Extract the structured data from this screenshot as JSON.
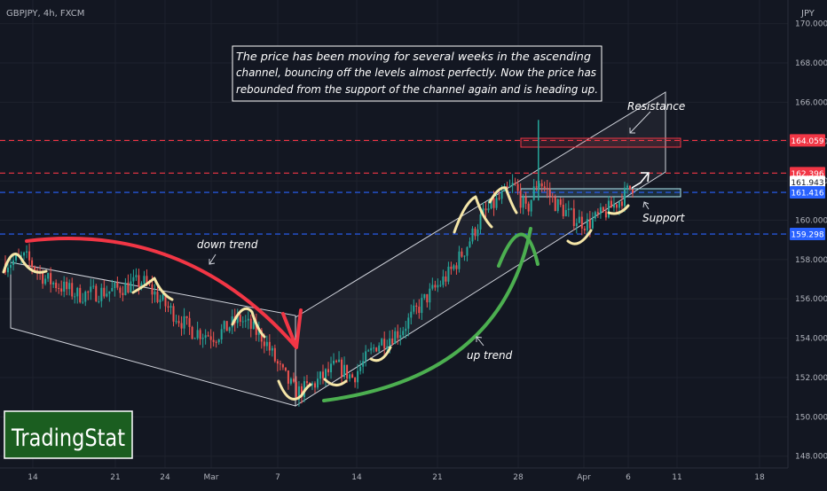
{
  "header": {
    "symbol_text": "GBPJPY, 4h, FXCM",
    "currency": "JPY"
  },
  "annotation_text": [
    "The price has been moving for several weeks in the ascending",
    "channel, bouncing off the levels almost perfectly. Now the price has",
    "rebounded from the support of the channel again and is heading up."
  ],
  "labels": {
    "down_trend": "down trend",
    "up_trend": "up trend",
    "resistance": "Resistance",
    "support": "Support"
  },
  "logo": "TradingStat",
  "colors": {
    "background": "#131722",
    "bull": "#26a69a",
    "bear": "#ef5350",
    "red_curve": "#f23645",
    "green_curve": "#4caf50",
    "yellow_curve": "#f5e6a8",
    "blue_level": "#2962ff"
  },
  "chart_data": {
    "type": "candlestick",
    "symbol": "GBPJPY",
    "timeframe": "4h",
    "source": "FXCM",
    "y_unit": "JPY",
    "y_ticks": [
      148,
      150,
      152,
      154,
      156,
      158,
      160,
      162,
      164,
      166,
      168,
      170
    ],
    "y_tick_labels": [
      "148.000",
      "150.000",
      "152.000",
      "154.000",
      "156.000",
      "158.000",
      "160.000",
      "162.000",
      "164.000",
      "166.000",
      "168.000",
      "170.000"
    ],
    "ylim": [
      147.4,
      171.2
    ],
    "x_tick_labels": [
      "14",
      "21",
      "24",
      "Mar",
      "7",
      "14",
      "21",
      "28",
      "Apr",
      "6",
      "11",
      "18"
    ],
    "price_levels": [
      {
        "value": 164.059,
        "label": "164.059",
        "color": "#f23645",
        "style": "dashed"
      },
      {
        "value": 162.396,
        "label": "162.396",
        "color": "#f23645",
        "style": "dashed"
      },
      {
        "value": 161.943,
        "label": "161.943",
        "color": "#ffffff",
        "style": "current"
      },
      {
        "value": 161.416,
        "label": "161.416",
        "color": "#2962ff",
        "style": "dashed"
      },
      {
        "value": 159.298,
        "label": "159.298",
        "color": "#2962ff",
        "style": "dashed"
      }
    ],
    "price_path": [
      [
        0,
        157.8
      ],
      [
        0.025,
        158.1
      ],
      [
        0.05,
        157.0
      ],
      [
        0.09,
        156.2
      ],
      [
        0.13,
        156.4
      ],
      [
        0.17,
        156.9
      ],
      [
        0.2,
        155.6
      ],
      [
        0.23,
        154.4
      ],
      [
        0.26,
        154.1
      ],
      [
        0.29,
        155.0
      ],
      [
        0.32,
        154.0
      ],
      [
        0.34,
        152.4
      ],
      [
        0.36,
        151.2
      ],
      [
        0.38,
        151.6
      ],
      [
        0.41,
        152.6
      ],
      [
        0.43,
        152.0
      ],
      [
        0.46,
        153.7
      ],
      [
        0.49,
        154.4
      ],
      [
        0.52,
        156.0
      ],
      [
        0.55,
        157.3
      ],
      [
        0.57,
        158.6
      ],
      [
        0.59,
        160.2
      ],
      [
        0.61,
        161.0
      ],
      [
        0.63,
        161.8
      ],
      [
        0.645,
        160.4
      ],
      [
        0.66,
        162.1
      ],
      [
        0.68,
        160.9
      ],
      [
        0.7,
        160.2
      ],
      [
        0.72,
        159.8
      ],
      [
        0.74,
        160.3
      ],
      [
        0.76,
        161.0
      ],
      [
        0.78,
        161.9
      ]
    ]
  }
}
